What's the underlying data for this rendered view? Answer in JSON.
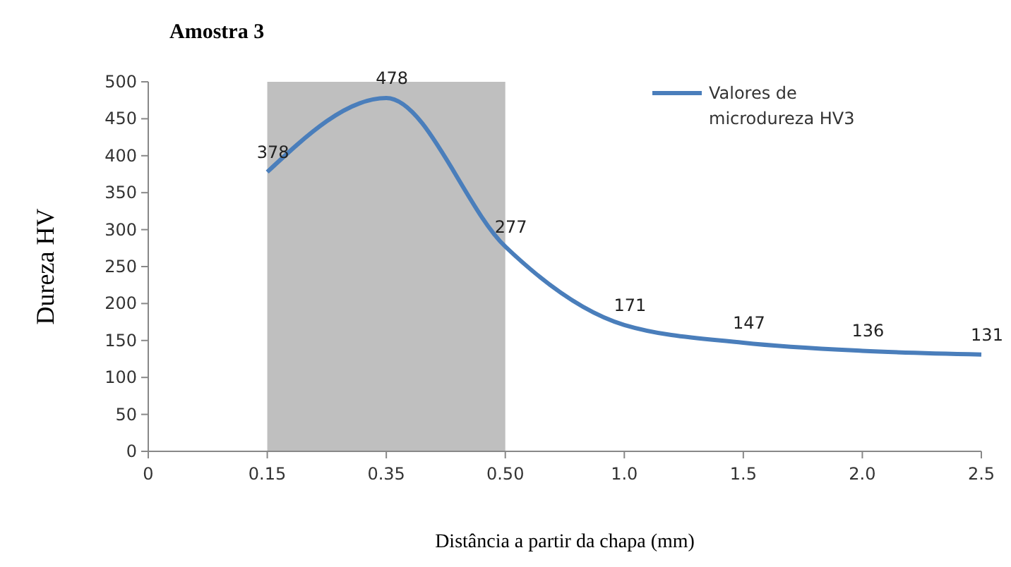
{
  "chart_data": {
    "type": "line",
    "title": "Amostra 3",
    "xlabel": "Distância a partir da chapa (mm)",
    "ylabel": "Dureza HV",
    "categories": [
      "0",
      "0.15",
      "0.35",
      "0.50",
      "1.0",
      "1.5",
      "2.0",
      "2.5"
    ],
    "series": [
      {
        "name": "Valores de microdureza HV3",
        "color": "#4a7ebb",
        "values": [
          null,
          378,
          478,
          277,
          171,
          147,
          136,
          131
        ]
      }
    ],
    "ylim": [
      0,
      500
    ],
    "yticks": [
      0,
      50,
      100,
      150,
      200,
      250,
      300,
      350,
      400,
      450,
      500
    ],
    "bands": [
      {
        "axis": "x",
        "from": "0.15",
        "to": "0.50",
        "color": "#bfbfbf"
      }
    ],
    "data_labels": true,
    "legend": "top right",
    "grid": false,
    "marker": "none",
    "line_style": "solid"
  }
}
